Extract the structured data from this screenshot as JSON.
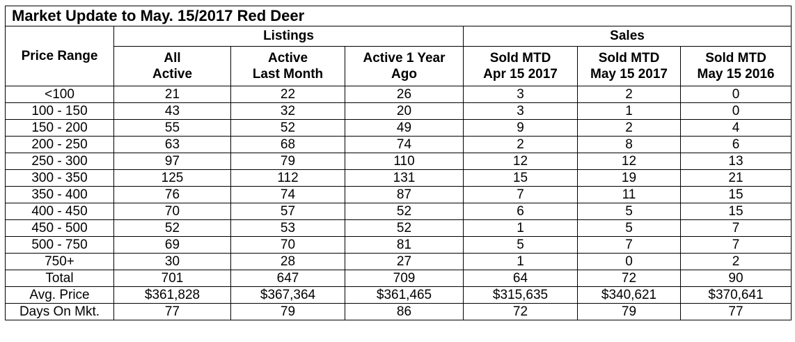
{
  "title": "Market Update to May. 15/2017 Red Deer",
  "groups": {
    "listings": "Listings",
    "sales": "Sales"
  },
  "columns": {
    "price_range": "Price Range",
    "all_active": [
      "All",
      "Active"
    ],
    "active_last_month": [
      "Active",
      "Last Month"
    ],
    "active_1yr_ago": [
      "Active 1 Year",
      "Ago"
    ],
    "sold_mtd_apr_2017": [
      "Sold MTD",
      "Apr 15 2017"
    ],
    "sold_mtd_may_2017": [
      "Sold MTD",
      "May 15 2017"
    ],
    "sold_mtd_may_2016": [
      "Sold MTD",
      "May 15 2016"
    ]
  },
  "rows": [
    [
      "<100",
      "21",
      "22",
      "26",
      "3",
      "2",
      "0"
    ],
    [
      "100 - 150",
      "43",
      "32",
      "20",
      "3",
      "1",
      "0"
    ],
    [
      "150 - 200",
      "55",
      "52",
      "49",
      "9",
      "2",
      "4"
    ],
    [
      "200 - 250",
      "63",
      "68",
      "74",
      "2",
      "8",
      "6"
    ],
    [
      "250 - 300",
      "97",
      "79",
      "110",
      "12",
      "12",
      "13"
    ],
    [
      "300 - 350",
      "125",
      "112",
      "131",
      "15",
      "19",
      "21"
    ],
    [
      "350 - 400",
      "76",
      "74",
      "87",
      "7",
      "11",
      "15"
    ],
    [
      "400 - 450",
      "70",
      "57",
      "52",
      "6",
      "5",
      "15"
    ],
    [
      "450 - 500",
      "52",
      "53",
      "52",
      "1",
      "5",
      "7"
    ],
    [
      "500 - 750",
      "69",
      "70",
      "81",
      "5",
      "7",
      "7"
    ],
    [
      "750+",
      "30",
      "28",
      "27",
      "1",
      "0",
      "2"
    ],
    [
      "Total",
      "701",
      "647",
      "709",
      "64",
      "72",
      "90"
    ],
    [
      "Avg. Price",
      "$361,828",
      "$367,364",
      "$361,465",
      "$315,635",
      "$340,621",
      "$370,641"
    ],
    [
      "Days On Mkt.",
      "77",
      "79",
      "86",
      "72",
      "79",
      "77"
    ]
  ]
}
